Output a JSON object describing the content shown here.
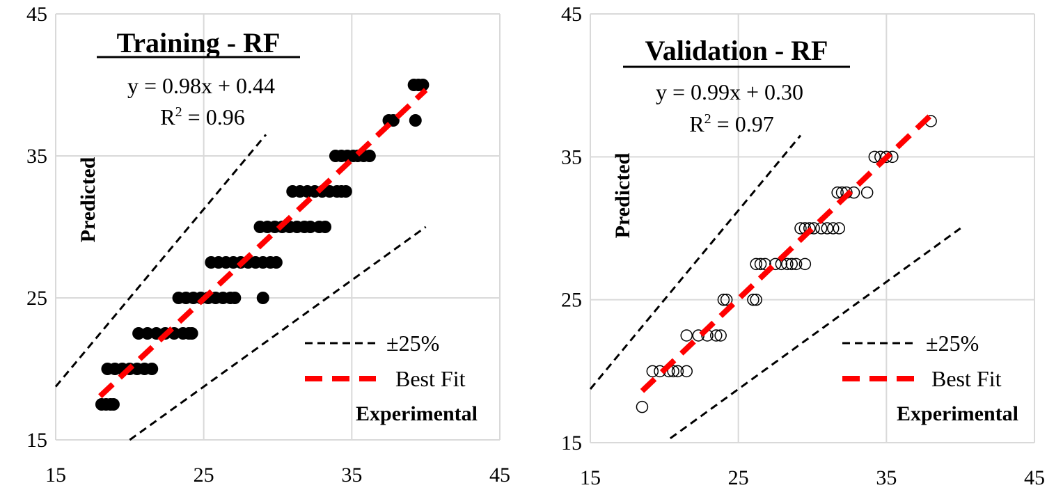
{
  "chart_data": [
    {
      "type": "scatter",
      "title": "Training - RF",
      "equation": "y = 0.98x + 0.44",
      "r2_prefix": "R",
      "r2_sup": "2",
      "r2_value": " = 0.96",
      "xlabel": "Experimental",
      "ylabel": "Predicted",
      "xlim": [
        15,
        45
      ],
      "ylim": [
        15,
        45
      ],
      "xticks": [
        "15",
        "25",
        "35",
        "45"
      ],
      "yticks": [
        "15",
        "25",
        "35",
        "45"
      ],
      "grid": true,
      "legend": {
        "placement": "bottom-right",
        "band_label": "±25%",
        "fit_label": "Best Fit"
      },
      "marker": "filled",
      "colors": {
        "points": "#000000",
        "fit": "#ff0000",
        "band": "#000000",
        "grid": "#d9d9d9"
      },
      "fit": {
        "slope": 0.98,
        "intercept": 0.44,
        "x_range": [
          18,
          40
        ]
      },
      "band_lines": {
        "upper": {
          "slope": 1.25,
          "x_range": [
            15,
            29.2
          ]
        },
        "lower": {
          "slope": 0.75,
          "x_range": [
            20,
            40
          ]
        }
      },
      "points": [
        [
          18.1,
          17.5
        ],
        [
          18.4,
          17.5
        ],
        [
          18.7,
          17.5
        ],
        [
          18.9,
          17.5
        ],
        [
          18.5,
          20
        ],
        [
          19.0,
          20
        ],
        [
          19.5,
          20
        ],
        [
          20.0,
          20
        ],
        [
          20.5,
          20
        ],
        [
          21.0,
          20
        ],
        [
          21.5,
          20
        ],
        [
          20.6,
          22.5
        ],
        [
          21.2,
          22.5
        ],
        [
          21.8,
          22.5
        ],
        [
          22.4,
          22.5
        ],
        [
          23.0,
          22.5
        ],
        [
          23.6,
          22.5
        ],
        [
          24.0,
          22.5
        ],
        [
          24.2,
          22.5
        ],
        [
          23.3,
          25
        ],
        [
          23.8,
          25
        ],
        [
          24.3,
          25
        ],
        [
          24.8,
          25
        ],
        [
          25.3,
          25
        ],
        [
          25.8,
          25
        ],
        [
          26.3,
          25
        ],
        [
          26.8,
          25
        ],
        [
          27.1,
          25
        ],
        [
          29.0,
          25
        ],
        [
          25.5,
          27.5
        ],
        [
          26.0,
          27.5
        ],
        [
          26.5,
          27.5
        ],
        [
          27.0,
          27.5
        ],
        [
          27.5,
          27.5
        ],
        [
          28.0,
          27.5
        ],
        [
          28.5,
          27.5
        ],
        [
          29.0,
          27.5
        ],
        [
          29.5,
          27.5
        ],
        [
          29.9,
          27.5
        ],
        [
          28.8,
          30
        ],
        [
          29.3,
          30
        ],
        [
          29.8,
          30
        ],
        [
          30.3,
          30
        ],
        [
          30.8,
          30
        ],
        [
          31.3,
          30
        ],
        [
          31.8,
          30
        ],
        [
          32.2,
          30
        ],
        [
          32.8,
          30
        ],
        [
          33.2,
          30
        ],
        [
          31.0,
          32.5
        ],
        [
          31.5,
          32.5
        ],
        [
          32.0,
          32.5
        ],
        [
          32.5,
          32.5
        ],
        [
          33.0,
          32.5
        ],
        [
          33.5,
          32.5
        ],
        [
          34.0,
          32.5
        ],
        [
          34.3,
          32.5
        ],
        [
          34.6,
          32.5
        ],
        [
          33.9,
          35
        ],
        [
          34.3,
          35
        ],
        [
          34.7,
          35
        ],
        [
          35.1,
          35
        ],
        [
          35.4,
          35
        ],
        [
          35.8,
          35
        ],
        [
          36.2,
          35
        ],
        [
          37.5,
          37.5
        ],
        [
          37.8,
          37.5
        ],
        [
          39.3,
          37.5
        ],
        [
          39.2,
          40
        ],
        [
          39.5,
          40
        ],
        [
          39.8,
          40
        ]
      ]
    },
    {
      "type": "scatter",
      "title": "Validation - RF",
      "equation": "y = 0.99x + 0.30",
      "r2_prefix": "R",
      "r2_sup": "2",
      "r2_value": " = 0.97",
      "xlabel": "Experimental",
      "ylabel": "Predicted",
      "xlim": [
        15,
        45
      ],
      "ylim": [
        15,
        45
      ],
      "xticks": [
        "15",
        "25",
        "35",
        "45"
      ],
      "yticks": [
        "15",
        "25",
        "35",
        "45"
      ],
      "grid": true,
      "legend": {
        "placement": "bottom-right",
        "band_label": "±25%",
        "fit_label": "Best Fit"
      },
      "marker": "hollow",
      "colors": {
        "points": "#000000",
        "fit": "#ff0000",
        "band": "#000000",
        "grid": "#d9d9d9"
      },
      "fit": {
        "slope": 0.99,
        "intercept": 0.3,
        "x_range": [
          18.5,
          38
        ]
      },
      "band_lines": {
        "upper": {
          "slope": 1.25,
          "x_range": [
            15,
            29.2
          ]
        },
        "lower": {
          "slope": 0.75,
          "x_range": [
            20.4,
            40
          ]
        }
      },
      "points": [
        [
          18.5,
          17.5
        ],
        [
          19.2,
          20
        ],
        [
          19.7,
          20
        ],
        [
          20.3,
          20
        ],
        [
          20.6,
          20
        ],
        [
          20.9,
          20
        ],
        [
          21.5,
          20
        ],
        [
          21.5,
          22.5
        ],
        [
          22.3,
          22.5
        ],
        [
          22.9,
          22.5
        ],
        [
          23.5,
          22.5
        ],
        [
          23.8,
          22.5
        ],
        [
          24.0,
          25
        ],
        [
          24.2,
          25
        ],
        [
          26.0,
          25
        ],
        [
          26.2,
          25
        ],
        [
          26.2,
          27.5
        ],
        [
          26.5,
          27.5
        ],
        [
          26.8,
          27.5
        ],
        [
          27.5,
          27.5
        ],
        [
          27.9,
          27.5
        ],
        [
          28.3,
          27.5
        ],
        [
          28.6,
          27.5
        ],
        [
          28.9,
          27.5
        ],
        [
          29.5,
          27.5
        ],
        [
          29.2,
          30
        ],
        [
          29.5,
          30
        ],
        [
          29.8,
          30
        ],
        [
          30.1,
          30
        ],
        [
          30.6,
          30
        ],
        [
          31.0,
          30
        ],
        [
          31.4,
          30
        ],
        [
          31.8,
          30
        ],
        [
          31.7,
          32.5
        ],
        [
          32.0,
          32.5
        ],
        [
          32.3,
          32.5
        ],
        [
          32.8,
          32.5
        ],
        [
          33.7,
          32.5
        ],
        [
          34.2,
          35
        ],
        [
          34.6,
          35
        ],
        [
          35.0,
          35
        ],
        [
          35.4,
          35
        ],
        [
          38.0,
          37.5
        ]
      ]
    }
  ]
}
